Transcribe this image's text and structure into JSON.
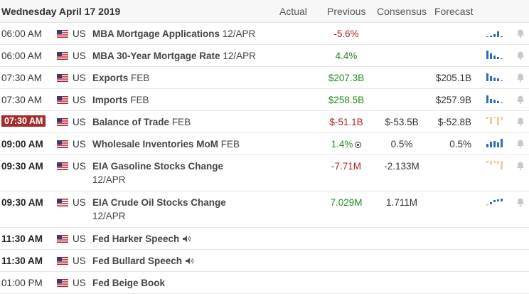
{
  "header": {
    "date": "Wednesday April 17 2019",
    "actual": "Actual",
    "previous": "Previous",
    "consensus": "Consensus",
    "forecast": "Forecast"
  },
  "colors": {
    "negative": "#b22222",
    "positive": "#228b22",
    "highlight": "#a52a2a",
    "spark_blue": "#2f6fb0",
    "spark_tan": "#e8cfa6"
  },
  "rows": [
    {
      "time": "06:00 AM",
      "country": "US",
      "event": "MBA Mortgage Applications",
      "ref": "12/APR",
      "actual": "",
      "previous": "-5.6%",
      "consensus": "",
      "forecast": ""
    },
    {
      "time": "06:00 AM",
      "country": "US",
      "event": "MBA 30-Year Mortgage Rate",
      "ref": "12/APR",
      "actual": "",
      "previous": "4.4%",
      "consensus": "",
      "forecast": ""
    },
    {
      "time": "07:30 AM",
      "country": "US",
      "event": "Exports",
      "ref": "FEB",
      "actual": "",
      "previous": "$207.3B",
      "consensus": "",
      "forecast": "$205.1B"
    },
    {
      "time": "07:30 AM",
      "country": "US",
      "event": "Imports",
      "ref": "FEB",
      "actual": "",
      "previous": "$258.5B",
      "consensus": "",
      "forecast": "$257.9B"
    },
    {
      "time": "07:30 AM",
      "country": "US",
      "event": "Balance of Trade",
      "ref": "FEB",
      "actual": "",
      "previous": "$-51.1B",
      "consensus": "$-53.5B",
      "forecast": "$-52.8B"
    },
    {
      "time": "09:00 AM",
      "country": "US",
      "event": "Wholesale Inventories MoM",
      "ref": "FEB",
      "actual": "",
      "previous": "1.4%",
      "consensus": "0.5%",
      "forecast": "0.5%"
    },
    {
      "time": "09:30 AM",
      "country": "US",
      "event": "EIA Gasoline Stocks Change",
      "ref": "12/APR",
      "actual": "",
      "previous": "-7.71M",
      "consensus": "-2.133M",
      "forecast": ""
    },
    {
      "time": "09:30 AM",
      "country": "US",
      "event": "EIA Crude Oil Stocks Change",
      "ref": "12/APR",
      "actual": "",
      "previous": "7.029M",
      "consensus": "1.711M",
      "forecast": ""
    },
    {
      "time": "11:30 AM",
      "country": "US",
      "event": "Fed Harker Speech",
      "ref": "",
      "actual": "",
      "previous": "",
      "consensus": "",
      "forecast": ""
    },
    {
      "time": "11:30 AM",
      "country": "US",
      "event": "Fed Bullard Speech",
      "ref": "",
      "actual": "",
      "previous": "",
      "consensus": "",
      "forecast": ""
    },
    {
      "time": "01:00 PM",
      "country": "US",
      "event": "Fed Beige Book",
      "ref": "",
      "actual": "",
      "previous": "",
      "consensus": "",
      "forecast": ""
    }
  ]
}
